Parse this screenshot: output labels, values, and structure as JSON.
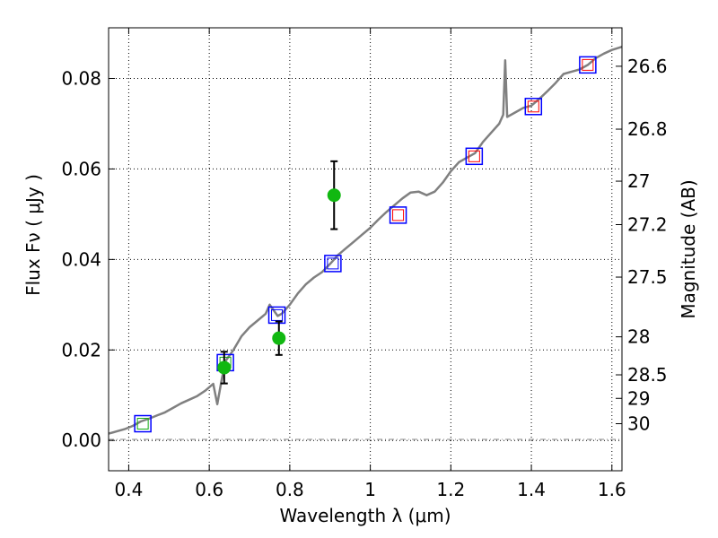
{
  "chart_data": {
    "type": "scatter",
    "xlabel": "Wavelength  λ (μm)",
    "ylabel": "Flux  Fν  ( μJy )",
    "ylabel_right": "Magnitude (AB)",
    "xlim": [
      0.35,
      1.625
    ],
    "ylim": [
      -0.0067,
      0.0912
    ],
    "grid": true,
    "x_ticks": [
      0.4,
      0.6,
      0.8,
      1.0,
      1.2,
      1.4,
      1.6
    ],
    "x_tick_labels": [
      "0.4",
      "0.6",
      "0.8",
      "1",
      "1.2",
      "1.4",
      "1.6"
    ],
    "y_ticks": [
      0.0,
      0.02,
      0.04,
      0.06,
      0.08
    ],
    "y_tick_labels": [
      "0.00",
      "0.02",
      "0.04",
      "0.06",
      "0.08"
    ],
    "right_ticks": [
      {
        "label": "26.6",
        "flux": 0.0827
      },
      {
        "label": "26.8",
        "flux": 0.0688
      },
      {
        "label": "27",
        "flux": 0.0573
      },
      {
        "label": "27.2",
        "flux": 0.0477
      },
      {
        "label": "27.5",
        "flux": 0.0361
      },
      {
        "label": "28",
        "flux": 0.0229
      },
      {
        "label": "28.5",
        "flux": 0.0145
      },
      {
        "label": "29",
        "flux": 0.0093
      },
      {
        "label": "30",
        "flux": 0.0037
      }
    ],
    "colors": {
      "model": "#808080",
      "observed": "#11b811",
      "errorbar": "#000000",
      "blue_box": "#0000ff",
      "red_box": "#ff0000",
      "green_box": "#11aa11"
    },
    "model_spectrum": {
      "x": [
        0.35,
        0.37,
        0.39,
        0.41,
        0.43,
        0.45,
        0.47,
        0.49,
        0.51,
        0.53,
        0.55,
        0.57,
        0.59,
        0.61,
        0.62,
        0.63,
        0.64,
        0.66,
        0.68,
        0.7,
        0.72,
        0.74,
        0.75,
        0.77,
        0.78,
        0.8,
        0.82,
        0.84,
        0.86,
        0.88,
        0.9,
        0.92,
        0.94,
        0.96,
        0.98,
        1.0,
        1.02,
        1.04,
        1.06,
        1.08,
        1.1,
        1.12,
        1.14,
        1.16,
        1.18,
        1.2,
        1.22,
        1.24,
        1.26,
        1.28,
        1.3,
        1.32,
        1.33,
        1.335,
        1.34,
        1.36,
        1.38,
        1.4,
        1.42,
        1.44,
        1.46,
        1.48,
        1.5,
        1.52,
        1.54,
        1.56,
        1.58,
        1.6,
        1.625
      ],
      "y": [
        0.0015,
        0.002,
        0.0025,
        0.0032,
        0.0042,
        0.0048,
        0.0055,
        0.0062,
        0.0072,
        0.0082,
        0.009,
        0.0098,
        0.011,
        0.0125,
        0.008,
        0.013,
        0.0175,
        0.02,
        0.023,
        0.025,
        0.0265,
        0.028,
        0.03,
        0.0275,
        0.028,
        0.03,
        0.0325,
        0.0345,
        0.036,
        0.0372,
        0.039,
        0.041,
        0.0425,
        0.044,
        0.0455,
        0.047,
        0.0488,
        0.0505,
        0.052,
        0.0535,
        0.0548,
        0.055,
        0.0542,
        0.055,
        0.057,
        0.0595,
        0.0615,
        0.0625,
        0.0635,
        0.066,
        0.068,
        0.07,
        0.072,
        0.084,
        0.0715,
        0.0725,
        0.0735,
        0.074,
        0.0755,
        0.0772,
        0.079,
        0.081,
        0.0815,
        0.082,
        0.083,
        0.0845,
        0.0855,
        0.0863,
        0.087
      ]
    },
    "observed_points": [
      {
        "x": 0.637,
        "y": 0.0161,
        "err": 0.0035
      },
      {
        "x": 0.773,
        "y": 0.0226,
        "err": 0.0037
      },
      {
        "x": 0.91,
        "y": 0.0542,
        "err": 0.0075
      }
    ],
    "synthetic_photometry": [
      {
        "x": 0.435,
        "y": 0.0037,
        "inner": "green"
      },
      {
        "x": 0.64,
        "y": 0.0172,
        "inner": "green"
      },
      {
        "x": 0.768,
        "y": 0.0277,
        "inner": "blue"
      },
      {
        "x": 0.907,
        "y": 0.0391,
        "inner": "blue"
      },
      {
        "x": 1.069,
        "y": 0.0498,
        "inner": "red"
      },
      {
        "x": 1.258,
        "y": 0.0628,
        "inner": "red"
      },
      {
        "x": 1.405,
        "y": 0.0738,
        "inner": "red"
      },
      {
        "x": 1.54,
        "y": 0.083,
        "inner": "red"
      }
    ]
  }
}
